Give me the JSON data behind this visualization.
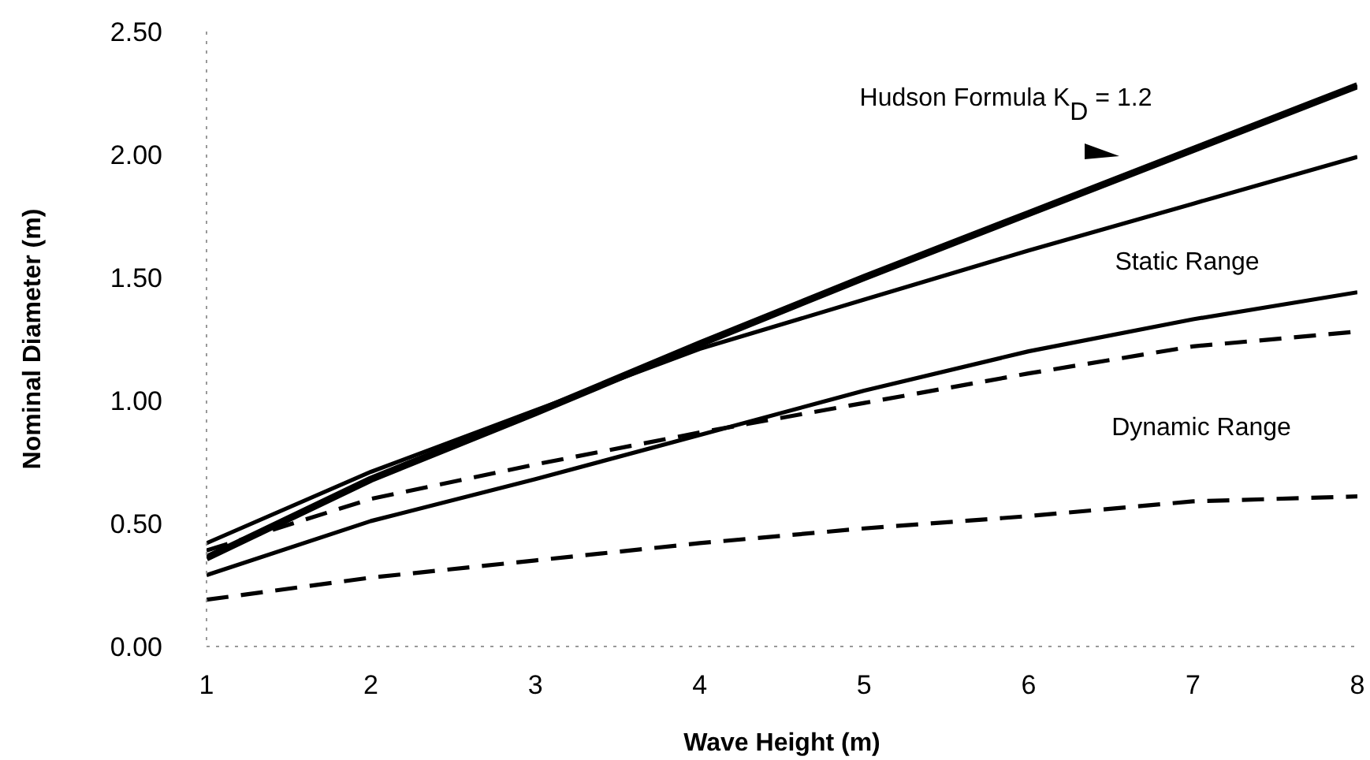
{
  "chart_data": {
    "type": "line",
    "xlabel": "Wave Height (m)",
    "ylabel": "Nominal Diameter (m)",
    "x": [
      1,
      2,
      3,
      4,
      5,
      6,
      7,
      8
    ],
    "xlim": [
      1,
      8
    ],
    "xticks": [
      1,
      2,
      3,
      4,
      5,
      6,
      7,
      8
    ],
    "ylim": [
      0,
      2.5
    ],
    "yticks": [
      {
        "value": 0,
        "label": "0.00"
      },
      {
        "value": 0.5,
        "label": "0.50"
      },
      {
        "value": 1,
        "label": "1.00"
      },
      {
        "value": 1.5,
        "label": "1.50"
      },
      {
        "value": 2,
        "label": "2.00"
      },
      {
        "value": 2.5,
        "label": "2.50"
      }
    ],
    "grid": false,
    "legend": false,
    "marker": "none",
    "series": [
      {
        "color": "#000000",
        "line_style": "solid",
        "values": [
          0.36,
          0.68,
          0.95,
          1.23,
          1.5,
          1.76,
          2.02,
          2.28
        ]
      },
      {
        "color": "#000000",
        "line_style": "solid",
        "values": [
          0.42,
          0.71,
          0.96,
          1.21,
          1.41,
          1.61,
          1.8,
          1.99
        ]
      },
      {
        "color": "#000000",
        "line_style": "solid",
        "values": [
          0.29,
          0.51,
          0.68,
          0.86,
          1.04,
          1.2,
          1.33,
          1.44
        ]
      },
      {
        "color": "#000000",
        "line_style": "dashed",
        "values": [
          0.39,
          0.6,
          0.74,
          0.87,
          0.99,
          1.11,
          1.22,
          1.28
        ]
      },
      {
        "color": "#000000",
        "line_style": "dashed",
        "values": [
          0.19,
          0.28,
          0.35,
          0.42,
          0.48,
          0.53,
          0.59,
          0.61
        ]
      }
    ],
    "annotations": [
      "Hudson Formula K$_{D}$ = 1.2",
      "Static Range",
      "Dynamic Range"
    ]
  }
}
